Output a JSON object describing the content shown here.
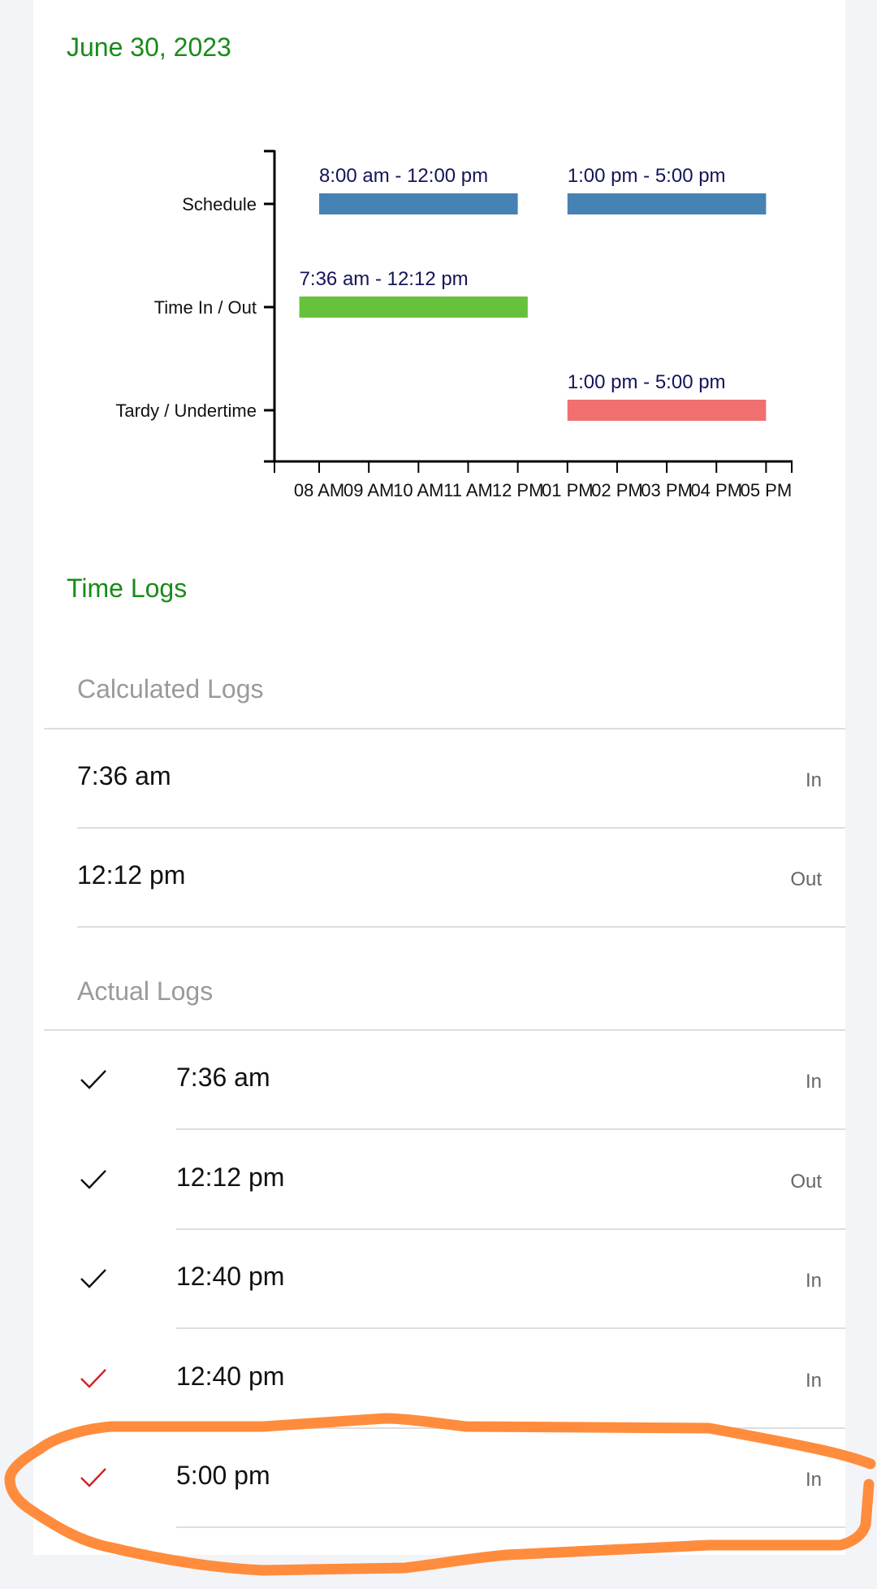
{
  "date_title": "June 30, 2023",
  "chart_data": {
    "type": "timeline-bar",
    "categories": [
      "Schedule",
      "Time In / Out",
      "Tardy / Undertime"
    ],
    "x_tick_labels": [
      "08 AM",
      "09 AM",
      "10 AM",
      "11 AM",
      "12 PM",
      "01 PM",
      "02 PM",
      "03 PM",
      "04 PM",
      "05 PM"
    ],
    "xlim": [
      "07:06",
      "17:32"
    ],
    "bars": [
      {
        "category": "Schedule",
        "start": "08:00",
        "end": "12:00",
        "label": "8:00 am - 12:00 pm",
        "color": "#4682b4"
      },
      {
        "category": "Schedule",
        "start": "13:00",
        "end": "17:00",
        "label": "1:00 pm - 5:00 pm",
        "color": "#4682b4"
      },
      {
        "category": "Time In / Out",
        "start": "07:36",
        "end": "12:12",
        "label": "7:36 am - 12:12 pm",
        "color": "#66c23a"
      },
      {
        "category": "Tardy / Undertime",
        "start": "13:00",
        "end": "17:00",
        "label": "1:00 pm - 5:00 pm",
        "color": "#f07070"
      }
    ],
    "label_color": "#14145a"
  },
  "time_logs_title": "Time Logs",
  "calculated": {
    "header": "Calculated Logs",
    "rows": [
      {
        "time": "7:36 am",
        "dir": "In"
      },
      {
        "time": "12:12 pm",
        "dir": "Out"
      }
    ]
  },
  "actual": {
    "header": "Actual Logs",
    "rows": [
      {
        "time": "7:36 am",
        "dir": "In",
        "check_color": "#111111"
      },
      {
        "time": "12:12 pm",
        "dir": "Out",
        "check_color": "#111111"
      },
      {
        "time": "12:40 pm",
        "dir": "In",
        "check_color": "#111111"
      },
      {
        "time": "12:40 pm",
        "dir": "In",
        "check_color": "#d42020"
      },
      {
        "time": "5:00 pm",
        "dir": "In",
        "check_color": "#d42020"
      }
    ]
  },
  "annotation_color": "#ff8c3c"
}
